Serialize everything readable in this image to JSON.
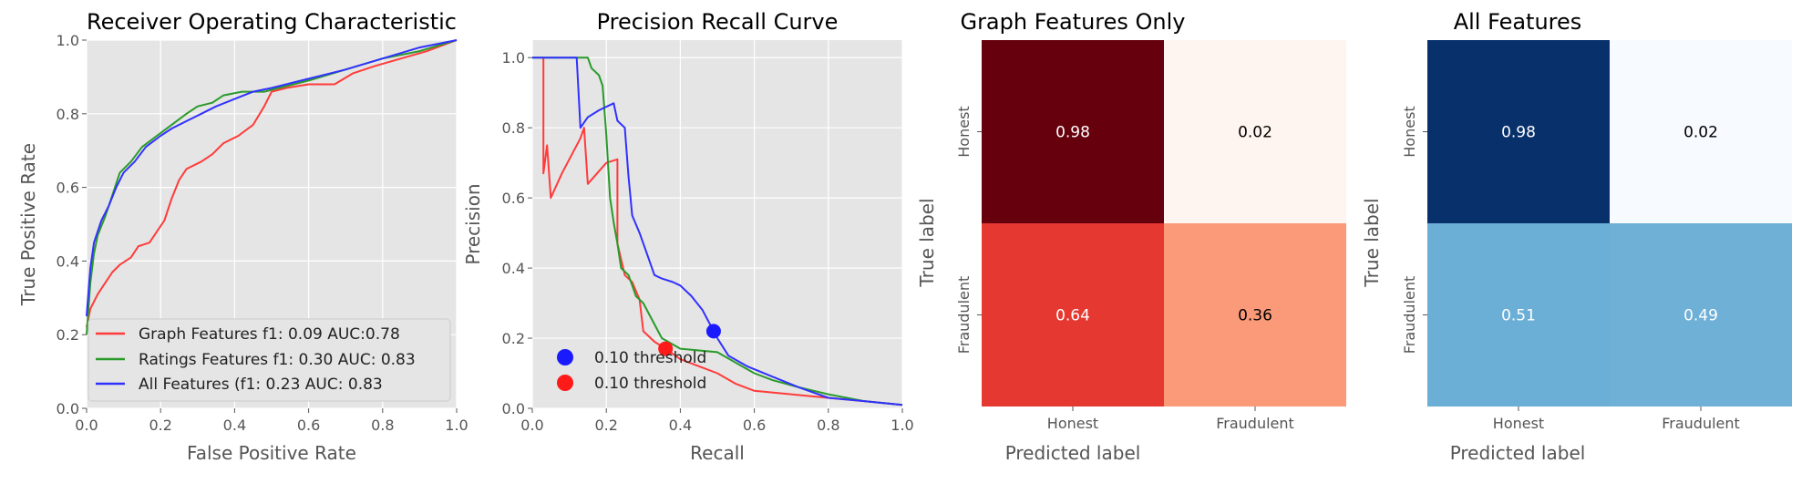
{
  "chart_data": [
    {
      "type": "line",
      "title": "Receiver Operating Characteristic",
      "xlabel": "False Positive Rate",
      "ylabel": "True Positive Rate",
      "xlim": [
        0,
        1
      ],
      "ylim": [
        0,
        1
      ],
      "xticks": [
        "0.0",
        "0.2",
        "0.4",
        "0.6",
        "0.8",
        "1.0"
      ],
      "yticks": [
        "0.0",
        "0.2",
        "0.4",
        "0.6",
        "0.8",
        "1.0"
      ],
      "grid": true,
      "legend_position": "lower-right",
      "series": [
        {
          "name": "Graph Features f1: 0.09 AUC:0.78",
          "color": "#ff3b3b",
          "points": [
            [
              0,
              0.22
            ],
            [
              0.01,
              0.27
            ],
            [
              0.03,
              0.31
            ],
            [
              0.05,
              0.34
            ],
            [
              0.07,
              0.37
            ],
            [
              0.09,
              0.39
            ],
            [
              0.12,
              0.41
            ],
            [
              0.14,
              0.44
            ],
            [
              0.17,
              0.45
            ],
            [
              0.19,
              0.48
            ],
            [
              0.21,
              0.51
            ],
            [
              0.23,
              0.57
            ],
            [
              0.25,
              0.62
            ],
            [
              0.27,
              0.65
            ],
            [
              0.31,
              0.67
            ],
            [
              0.34,
              0.69
            ],
            [
              0.37,
              0.72
            ],
            [
              0.41,
              0.74
            ],
            [
              0.45,
              0.77
            ],
            [
              0.48,
              0.82
            ],
            [
              0.5,
              0.86
            ],
            [
              0.54,
              0.87
            ],
            [
              0.6,
              0.88
            ],
            [
              0.67,
              0.88
            ],
            [
              0.72,
              0.91
            ],
            [
              0.78,
              0.93
            ],
            [
              0.85,
              0.95
            ],
            [
              0.92,
              0.97
            ],
            [
              1,
              1
            ]
          ]
        },
        {
          "name": "Ratings Features f1: 0.30 AUC: 0.83",
          "color": "#2a9a2a",
          "points": [
            [
              0,
              0.2
            ],
            [
              0.01,
              0.34
            ],
            [
              0.02,
              0.42
            ],
            [
              0.03,
              0.47
            ],
            [
              0.05,
              0.52
            ],
            [
              0.07,
              0.58
            ],
            [
              0.09,
              0.64
            ],
            [
              0.12,
              0.67
            ],
            [
              0.15,
              0.71
            ],
            [
              0.19,
              0.74
            ],
            [
              0.23,
              0.77
            ],
            [
              0.27,
              0.8
            ],
            [
              0.3,
              0.82
            ],
            [
              0.34,
              0.83
            ],
            [
              0.37,
              0.85
            ],
            [
              0.42,
              0.86
            ],
            [
              0.48,
              0.86
            ],
            [
              0.52,
              0.87
            ],
            [
              0.6,
              0.89
            ],
            [
              0.7,
              0.92
            ],
            [
              0.8,
              0.95
            ],
            [
              0.9,
              0.97
            ],
            [
              1,
              1
            ]
          ]
        },
        {
          "name": "All Features (f1: 0.23 AUC: 0.83",
          "color": "#3131ff",
          "points": [
            [
              0,
              0.25
            ],
            [
              0.01,
              0.38
            ],
            [
              0.02,
              0.45
            ],
            [
              0.04,
              0.51
            ],
            [
              0.06,
              0.55
            ],
            [
              0.08,
              0.6
            ],
            [
              0.1,
              0.64
            ],
            [
              0.13,
              0.67
            ],
            [
              0.16,
              0.71
            ],
            [
              0.2,
              0.74
            ],
            [
              0.23,
              0.76
            ],
            [
              0.27,
              0.78
            ],
            [
              0.31,
              0.8
            ],
            [
              0.35,
              0.82
            ],
            [
              0.4,
              0.84
            ],
            [
              0.45,
              0.86
            ],
            [
              0.5,
              0.87
            ],
            [
              0.58,
              0.89
            ],
            [
              0.7,
              0.92
            ],
            [
              0.8,
              0.95
            ],
            [
              0.9,
              0.98
            ],
            [
              1,
              1
            ]
          ]
        }
      ]
    },
    {
      "type": "line",
      "title": "Precision Recall Curve",
      "xlabel": "Recall",
      "ylabel": "Precision",
      "xlim": [
        0,
        1
      ],
      "ylim": [
        0,
        1.05
      ],
      "xticks": [
        "0.0",
        "0.2",
        "0.4",
        "0.6",
        "0.8",
        "1.0"
      ],
      "yticks": [
        "0.0",
        "0.2",
        "0.4",
        "0.6",
        "0.8",
        "1.0"
      ],
      "grid": true,
      "legend_position": "lower-left",
      "series": [
        {
          "color": "#ff3b3b",
          "points": [
            [
              0.03,
              1
            ],
            [
              0.03,
              0.67
            ],
            [
              0.04,
              0.75
            ],
            [
              0.05,
              0.6
            ],
            [
              0.08,
              0.67
            ],
            [
              0.1,
              0.71
            ],
            [
              0.13,
              0.77
            ],
            [
              0.14,
              0.8
            ],
            [
              0.15,
              0.64
            ],
            [
              0.2,
              0.7
            ],
            [
              0.23,
              0.71
            ],
            [
              0.23,
              0.47
            ],
            [
              0.25,
              0.38
            ],
            [
              0.27,
              0.36
            ],
            [
              0.29,
              0.31
            ],
            [
              0.3,
              0.22
            ],
            [
              0.33,
              0.19
            ],
            [
              0.36,
              0.17
            ],
            [
              0.4,
              0.14
            ],
            [
              0.45,
              0.12
            ],
            [
              0.5,
              0.1
            ],
            [
              0.55,
              0.07
            ],
            [
              0.6,
              0.05
            ],
            [
              0.7,
              0.04
            ],
            [
              0.8,
              0.03
            ],
            [
              0.9,
              0.02
            ],
            [
              1,
              0.01
            ]
          ]
        },
        {
          "color": "#2a9a2a",
          "points": [
            [
              0,
              1
            ],
            [
              0.15,
              1
            ],
            [
              0.16,
              0.97
            ],
            [
              0.18,
              0.95
            ],
            [
              0.19,
              0.92
            ],
            [
              0.2,
              0.78
            ],
            [
              0.21,
              0.6
            ],
            [
              0.22,
              0.53
            ],
            [
              0.23,
              0.47
            ],
            [
              0.24,
              0.4
            ],
            [
              0.26,
              0.38
            ],
            [
              0.28,
              0.32
            ],
            [
              0.3,
              0.3
            ],
            [
              0.32,
              0.26
            ],
            [
              0.35,
              0.2
            ],
            [
              0.4,
              0.17
            ],
            [
              0.5,
              0.16
            ],
            [
              0.55,
              0.13
            ],
            [
              0.6,
              0.1
            ],
            [
              0.65,
              0.08
            ],
            [
              0.72,
              0.06
            ],
            [
              0.8,
              0.04
            ],
            [
              0.9,
              0.02
            ],
            [
              1,
              0.01
            ]
          ]
        },
        {
          "color": "#3131ff",
          "points": [
            [
              0,
              1
            ],
            [
              0.12,
              1
            ],
            [
              0.13,
              0.8
            ],
            [
              0.15,
              0.83
            ],
            [
              0.18,
              0.85
            ],
            [
              0.22,
              0.87
            ],
            [
              0.23,
              0.82
            ],
            [
              0.25,
              0.8
            ],
            [
              0.26,
              0.66
            ],
            [
              0.27,
              0.55
            ],
            [
              0.29,
              0.5
            ],
            [
              0.31,
              0.44
            ],
            [
              0.33,
              0.38
            ],
            [
              0.35,
              0.37
            ],
            [
              0.38,
              0.36
            ],
            [
              0.4,
              0.35
            ],
            [
              0.43,
              0.32
            ],
            [
              0.46,
              0.28
            ],
            [
              0.5,
              0.2
            ],
            [
              0.53,
              0.15
            ],
            [
              0.58,
              0.12
            ],
            [
              0.65,
              0.09
            ],
            [
              0.72,
              0.06
            ],
            [
              0.8,
              0.03
            ],
            [
              0.9,
              0.02
            ],
            [
              1,
              0.01
            ]
          ]
        }
      ],
      "markers": [
        {
          "label": "0.10 threshold",
          "x": 0.49,
          "y": 0.22,
          "color": "#1a1aff"
        },
        {
          "label": "0.10 threshold",
          "x": 0.36,
          "y": 0.17,
          "color": "#ff1a1a"
        }
      ]
    },
    {
      "type": "heatmap",
      "title": "Graph Features Only",
      "xlabel": "Predicted label",
      "ylabel": "True label",
      "x_categories": [
        "Honest",
        "Fraudulent"
      ],
      "y_categories": [
        "Honest",
        "Fraudulent"
      ],
      "values": [
        [
          0.98,
          0.02
        ],
        [
          0.64,
          0.36
        ]
      ],
      "labels": [
        [
          "0.98",
          "0.02"
        ],
        [
          "0.64",
          "0.36"
        ]
      ],
      "cell_colors": [
        [
          "#67000d",
          "#fff5f0"
        ],
        [
          "#e53831",
          "#fa9a79"
        ]
      ],
      "text_colors": [
        [
          "#ffffff",
          "#000000"
        ],
        [
          "#ffffff",
          "#000000"
        ]
      ]
    },
    {
      "type": "heatmap",
      "title": "All Features",
      "xlabel": "Predicted label",
      "ylabel": "True label",
      "x_categories": [
        "Honest",
        "Fraudulent"
      ],
      "y_categories": [
        "Honest",
        "Fraudulent"
      ],
      "values": [
        [
          0.98,
          0.02
        ],
        [
          0.51,
          0.49
        ]
      ],
      "labels": [
        [
          "0.98",
          "0.02"
        ],
        [
          "0.51",
          "0.49"
        ]
      ],
      "cell_colors": [
        [
          "#08306b",
          "#f7fbff"
        ],
        [
          "#6baed6",
          "#6fb0d7"
        ]
      ],
      "text_colors": [
        [
          "#ffffff",
          "#000000"
        ],
        [
          "#ffffff",
          "#ffffff"
        ]
      ]
    }
  ]
}
